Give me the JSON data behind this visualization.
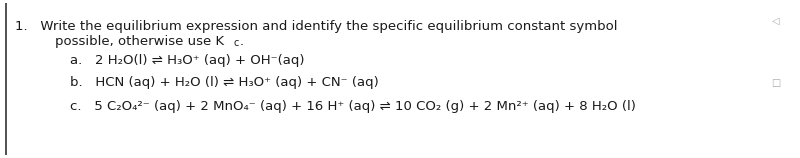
{
  "bg_color": "#ffffff",
  "text_color": "#1a1a1a",
  "font_size": 9.5,
  "line1": "1.   Write the equilibrium expression and identify the specific equilibrium constant symbol",
  "line2_pre": "possible, otherwise use K",
  "line2_sub": "c",
  "line2_post": ".",
  "line_a": "a.   2 H₂O(l) ⇌ H₃O⁺ (aq) + OH⁻(aq)",
  "line_b": "b.   HCN (aq) + H₂O (l) ⇌ H₃O⁺ (aq) + CN⁻ (aq)",
  "line_c": "c.   5 C₂O₄²⁻ (aq) + 2 MnO₄⁻ (aq) + 16 H⁺ (aq) ⇌ 10 CO₂ (g) + 2 Mn²⁺ (aq) + 8 H₂O (l)",
  "triangle_color": "#aaaaaa",
  "rect_color": "#aaaaaa",
  "border_color": "#333333"
}
